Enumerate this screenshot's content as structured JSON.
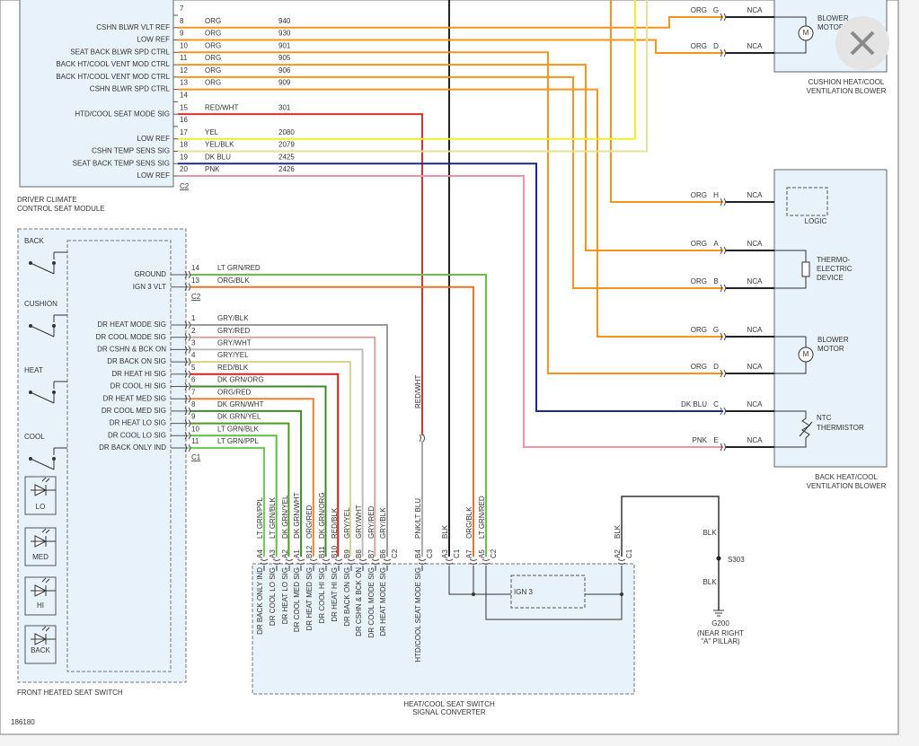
{
  "driver_module": {
    "title": [
      "DRIVER CLIMATE",
      "CONTROL SEAT MODULE"
    ],
    "connector": "C2",
    "pins": [
      {
        "pin": "7"
      },
      {
        "pin": "8",
        "signal": "CSHN BLWR VLT REF",
        "wire": "ORG",
        "circuit": "940"
      },
      {
        "pin": "9",
        "signal": "LOW REF",
        "wire": "ORG",
        "circuit": "930"
      },
      {
        "pin": "10",
        "signal": "SEAT BACK BLWR SPD CTRL",
        "wire": "ORG",
        "circuit": "901"
      },
      {
        "pin": "11",
        "signal": "BACK HT/COOL VENT MOD CTRL",
        "wire": "ORG",
        "circuit": "905"
      },
      {
        "pin": "12",
        "signal": "BACK HT/COOL VENT MOD CTRL",
        "wire": "ORG",
        "circuit": "906"
      },
      {
        "pin": "13",
        "signal": "CSHN BLWR SPD CTRL",
        "wire": "ORG",
        "circuit": "909"
      },
      {
        "pin": "14"
      },
      {
        "pin": "15",
        "signal": "HTD/COOL SEAT MODE SIG",
        "wire": "RED/WHT",
        "circuit": "301"
      },
      {
        "pin": "16"
      },
      {
        "pin": "17",
        "signal": "LOW REF",
        "wire": "YEL",
        "circuit": "2080"
      },
      {
        "pin": "18",
        "signal": "CSHN TEMP SENS SIG",
        "wire": "YEL/BLK",
        "circuit": "2079"
      },
      {
        "pin": "19",
        "signal": "SEAT BACK TEMP SENS SIG",
        "wire": "DK BLU",
        "circuit": "2425"
      },
      {
        "pin": "20",
        "signal": "LOW REF",
        "wire": "PNK",
        "circuit": "2426"
      }
    ]
  },
  "cushion_blower": {
    "title": [
      "CUSHION HEAT/COOL",
      "VENTILATION BLOWER"
    ],
    "motor_label": [
      "BLOWER",
      "MOTOR"
    ],
    "motor_symbol": "M",
    "terminals": [
      {
        "wire": "ORG",
        "pin": "G",
        "connector": "NCA"
      },
      {
        "wire": "ORG",
        "pin": "D",
        "connector": "NCA"
      }
    ]
  },
  "back_blower": {
    "title": [
      "BACK HEAT/COOL",
      "VENTILATION BLOWER"
    ],
    "logic_label": "LOGIC",
    "thermo_label": [
      "THERMO-",
      "ELECTRIC",
      "DEVICE"
    ],
    "motor_label": [
      "BLOWER",
      "MOTOR"
    ],
    "motor_symbol": "M",
    "thermistor_label": [
      "NTC",
      "THERMISTOR"
    ],
    "terminals": [
      {
        "wire": "ORG",
        "pin": "H",
        "connector": "NCA"
      },
      {
        "wire": "ORG",
        "pin": "A",
        "connector": "NCA"
      },
      {
        "wire": "ORG",
        "pin": "B",
        "connector": "NCA"
      },
      {
        "wire": "ORG",
        "pin": "G",
        "connector": "NCA"
      },
      {
        "wire": "ORG",
        "pin": "D",
        "connector": "NCA"
      },
      {
        "wire": "DK BLU",
        "pin": "C",
        "connector": "NCA"
      },
      {
        "wire": "PNK",
        "pin": "E",
        "connector": "NCA"
      }
    ]
  },
  "front_switch": {
    "title": "FRONT HEATED SEAT SWITCH",
    "switches": [
      "BACK",
      "CUSHION",
      "HEAT",
      "COOL"
    ],
    "indicators": [
      "LO",
      "MED",
      "HI",
      "BACK"
    ],
    "groups": [
      {
        "connector": "C2",
        "pins": [
          {
            "pin": "14",
            "signal": "GROUND",
            "wire": "LT GRN/RED"
          },
          {
            "pin": "13",
            "signal": "IGN 3 VLT",
            "wire": "ORG/BLK"
          }
        ]
      },
      {
        "connector": "C1",
        "pins": [
          {
            "pin": "1",
            "signal": "DR HEAT MODE SIG",
            "wire": "GRY/BLK"
          },
          {
            "pin": "2",
            "signal": "DR COOL MODE SIG",
            "wire": "GRY/RED"
          },
          {
            "pin": "3",
            "signal": "DR CSHN & BCK ON",
            "wire": "GRY/WHT"
          },
          {
            "pin": "4",
            "signal": "DR BACK ON SIG",
            "wire": "GRY/YEL"
          },
          {
            "pin": "5",
            "signal": "DR HEAT HI SIG",
            "wire": "RED/BLK"
          },
          {
            "pin": "6",
            "signal": "DR COOL HI SIG",
            "wire": "DK GRN/ORG"
          },
          {
            "pin": "7",
            "signal": "DR HEAT MED SIG",
            "wire": "ORG/RED"
          },
          {
            "pin": "8",
            "signal": "DR COOL MED SIG",
            "wire": "DK GRN/WHT"
          },
          {
            "pin": "9",
            "signal": "DR HEAT LO SIG",
            "wire": "DK GRN/YEL"
          },
          {
            "pin": "10",
            "signal": "DR COOL LO SIG",
            "wire": "LT GRN/BLK"
          },
          {
            "pin": "11",
            "signal": "DR BACK ONLY IND",
            "wire": "LT GRN/PPL"
          }
        ]
      }
    ]
  },
  "mid_wire_label": "RED/WHT",
  "converter": {
    "title": [
      "HEAT/COOL SEAT SWITCH",
      "SIGNAL CONVERTER"
    ],
    "internal": "IGN 3",
    "pins": [
      {
        "pin": "A4",
        "wire": "LT GRN/PPL",
        "signal": "DR BACK ONLY IND"
      },
      {
        "pin": "A3",
        "wire": "LT GRN/BLK",
        "signal": "DR COOL LO SIG"
      },
      {
        "pin": "A2",
        "wire": "DK GRN/YEL",
        "signal": "DR HEAT LO SIG"
      },
      {
        "pin": "A1",
        "wire": "DK GRN/WHT",
        "signal": "DR COOL MED SIG"
      },
      {
        "pin": "B12",
        "wire": "ORG/RED",
        "signal": "DR HEAT MED SIG"
      },
      {
        "pin": "B11",
        "wire": "DK GRN/ORG",
        "signal": "DR COOL HI SIG"
      },
      {
        "pin": "B10",
        "wire": "RED/BLK",
        "signal": "DR HEAT HI SIG"
      },
      {
        "pin": "B9",
        "wire": "GRY/YEL",
        "signal": "DR BACK ON SIG"
      },
      {
        "pin": "B8",
        "wire": "GRY/WHT",
        "signal": "DR CSHN & BCK ON"
      },
      {
        "pin": "B7",
        "wire": "GRY/RED",
        "signal": "DR COOL MODE SIG"
      },
      {
        "pin": "B6",
        "wire": "GRY/BLK",
        "signal": "DR HEAT MODE SIG",
        "connector": "C2"
      },
      {
        "pin": "B4",
        "wire": "PNK/LT BLU",
        "signal": "HTD/COOL SEAT MODE SIG",
        "connector": "C3"
      },
      {
        "pin": "A3",
        "wire": "BLK",
        "connector": "C1"
      },
      {
        "pin": "A7",
        "wire": "ORG/BLK"
      },
      {
        "pin": "A5",
        "wire": "LT GRN/RED",
        "connector": "C2"
      },
      {
        "pin": "A2",
        "wire": "BLK",
        "connector": "C1"
      }
    ]
  },
  "ground": {
    "wires": [
      "BLK",
      "BLK"
    ],
    "splice": "S303",
    "name": "G200",
    "location": [
      "(NEAR RIGHT",
      "\"A\" PILLAR)"
    ]
  },
  "figure_id": "186180"
}
